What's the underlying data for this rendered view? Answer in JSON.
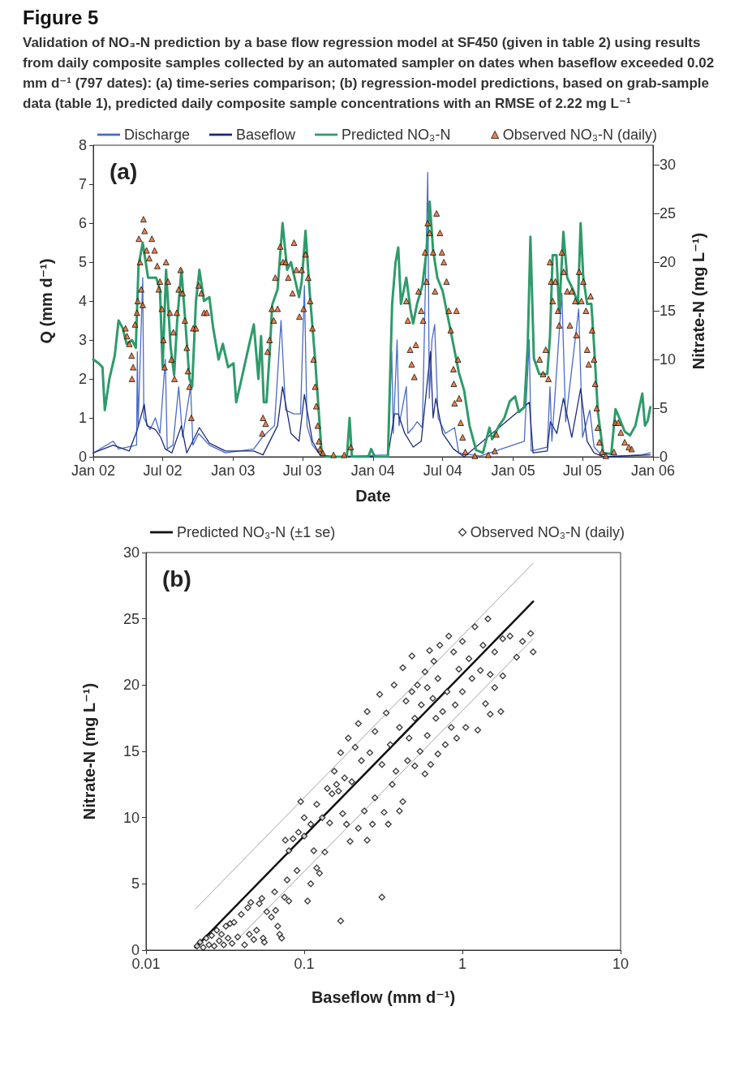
{
  "chart_data": [
    {
      "type": "line",
      "title": "Figure 5",
      "subtitle": "Validation of NO₃-N prediction by a base flow regression model at SF450 (given in table 2) using results from daily composite samples collected by an automated sampler on dates when baseflow exceeded 0.02 mm d⁻¹ (797 dates): (a) time-series comparison; (b) regression-model predictions, based on grab-sample data (table 1), predicted daily composite sample concentrations with an RMSE of 2.22 mg L⁻¹",
      "xlabel": "Date",
      "ylabel": "Q (mm d⁻¹)",
      "y2label": "Nitrate-N (mg L⁻¹)",
      "annotations": [
        "(a)"
      ],
      "legend": "top",
      "xlim": [
        "2002-01-01",
        "2006-01-01"
      ],
      "xticks": [
        {
          "value": "2002-01-01",
          "label": "Jan 02"
        },
        {
          "value": "2002-07-01",
          "label": "Jul 02"
        },
        {
          "value": "2003-01-01",
          "label": "Jan 03"
        },
        {
          "value": "2003-07-01",
          "label": "Jul 03"
        },
        {
          "value": "2004-01-01",
          "label": "Jan 04"
        },
        {
          "value": "2004-07-01",
          "label": "Jul 04"
        },
        {
          "value": "2005-01-01",
          "label": "Jan 05"
        },
        {
          "value": "2005-07-01",
          "label": "Jul 05"
        },
        {
          "value": "2006-01-01",
          "label": "Jan 06"
        }
      ],
      "ylim": [
        0,
        8
      ],
      "yticks": [
        0,
        1,
        2,
        3,
        4,
        5,
        6,
        7,
        8
      ],
      "y2lim": [
        0,
        32
      ],
      "y2ticks": [
        0,
        5,
        10,
        15,
        20,
        25,
        30
      ],
      "series": [
        {
          "name": "Discharge",
          "color": "#4a6cc8",
          "marker": "none",
          "x": [
            "2002-01-01",
            "2002-02-22",
            "2002-03-08",
            "2002-04-24",
            "2002-04-26",
            "2002-04-28",
            "2002-05-10",
            "2002-05-13",
            "2002-05-29",
            "2002-06-12",
            "2002-06-24",
            "2002-07-08",
            "2002-07-13",
            "2002-07-28",
            "2002-08-12",
            "2002-08-22",
            "2002-09-12",
            "2002-09-18",
            "2002-10-03",
            "2002-10-31",
            "2002-12-12",
            "2003-02-24",
            "2003-03-18",
            "2003-04-19",
            "2003-04-27",
            "2003-05-06",
            "2003-05-18",
            "2003-06-08",
            "2003-06-26",
            "2003-07-06",
            "2003-07-13",
            "2003-07-27",
            "2003-08-16",
            "2003-09-20",
            "2004-02-09",
            "2004-02-19",
            "2004-02-23",
            "2004-03-04",
            "2004-03-09",
            "2004-03-28",
            "2004-04-01",
            "2004-04-15",
            "2004-04-25",
            "2004-05-09",
            "2004-05-23",
            "2004-05-27",
            "2004-06-03",
            "2004-06-10",
            "2004-06-19",
            "2004-07-08",
            "2004-08-01",
            "2004-08-12",
            "2004-10-07",
            "2005-01-30",
            "2005-02-12",
            "2005-02-17",
            "2005-03-31",
            "2005-04-07",
            "2005-04-12",
            "2005-05-08",
            "2005-05-18",
            "2005-06-21",
            "2005-07-01",
            "2005-07-20",
            "2005-07-31",
            "2005-08-24",
            "2005-12-01",
            "2005-12-25"
          ],
          "values": [
            0.1,
            0.4,
            0.2,
            0.3,
            2.7,
            0.8,
            4.6,
            1.0,
            0.7,
            1.0,
            0.6,
            2.5,
            0.2,
            0.3,
            1.8,
            0.5,
            1.8,
            0.3,
            0.6,
            0.3,
            0.1,
            0.2,
            0.5,
            0.8,
            2.1,
            3.5,
            1.2,
            1.1,
            1.1,
            4.4,
            0.8,
            0.3,
            0.05,
            0,
            0.05,
            2.7,
            0.6,
            3.0,
            0.8,
            1.8,
            0.6,
            0.75,
            0.9,
            0.75,
            7.3,
            1.5,
            3.0,
            3.4,
            1.0,
            0.6,
            0.75,
            0.1,
            0.02,
            0.4,
            3.0,
            0.15,
            0.25,
            1.8,
            0.4,
            4.2,
            0.9,
            3.8,
            0.5,
            1.2,
            0.25,
            0,
            0.05,
            0.1
          ]
        },
        {
          "name": "Baseflow",
          "color": "#1c2a7a",
          "marker": "none",
          "x": [
            "2002-01-01",
            "2002-02-22",
            "2002-04-05",
            "2002-04-26",
            "2002-05-14",
            "2002-05-21",
            "2002-06-12",
            "2002-06-26",
            "2002-07-08",
            "2002-07-25",
            "2002-08-19",
            "2002-09-02",
            "2002-10-05",
            "2002-10-31",
            "2002-12-12",
            "2003-02-24",
            "2003-03-20",
            "2003-04-27",
            "2003-05-10",
            "2003-06-01",
            "2003-06-22",
            "2003-07-06",
            "2003-07-27",
            "2003-08-16",
            "2003-09-20",
            "2004-02-09",
            "2004-02-26",
            "2004-03-07",
            "2004-03-24",
            "2004-04-15",
            "2004-05-06",
            "2004-05-30",
            "2004-06-06",
            "2004-06-13",
            "2004-07-01",
            "2004-07-29",
            "2004-08-26",
            "2005-02-12",
            "2005-02-22",
            "2005-03-31",
            "2005-04-08",
            "2005-04-25",
            "2005-05-12",
            "2005-06-03",
            "2005-06-26",
            "2005-07-13",
            "2005-07-31",
            "2005-08-24",
            "2005-12-25"
          ],
          "values": [
            0.1,
            0.3,
            0.15,
            0.7,
            1.35,
            0.8,
            0.7,
            0.5,
            0.2,
            0.1,
            0.8,
            0.1,
            0.75,
            0.35,
            0.15,
            0.15,
            0.05,
            0.8,
            1.8,
            0.6,
            0.4,
            1.6,
            0.4,
            0.05,
            0,
            0,
            1.1,
            1.1,
            0.6,
            0.25,
            0.4,
            2.7,
            1.0,
            1.5,
            0.6,
            0.2,
            0,
            1.4,
            0.1,
            0.15,
            0.9,
            0.6,
            1.5,
            0.5,
            1.75,
            0.4,
            0.1,
            0,
            0.05
          ]
        },
        {
          "name": "Predicted NO₃-N",
          "axis": "y2",
          "color": "#2e9b6b",
          "marker": "none",
          "x": [
            "2002-01-01",
            "2002-01-15",
            "2002-01-25",
            "2002-01-31",
            "2002-02-12",
            "2002-02-26",
            "2002-03-08",
            "2002-03-19",
            "2002-03-29",
            "2002-04-12",
            "2002-04-22",
            "2002-04-29",
            "2002-05-10",
            "2002-05-24",
            "2002-06-14",
            "2002-06-24",
            "2002-07-01",
            "2002-07-10",
            "2002-07-22",
            "2002-07-31",
            "2002-08-08",
            "2002-08-19",
            "2002-08-29",
            "2002-09-09",
            "2002-09-16",
            "2002-09-26",
            "2002-10-05",
            "2002-10-17",
            "2002-10-31",
            "2002-11-10",
            "2002-11-24",
            "2002-12-05",
            "2002-12-19",
            "2003-01-02",
            "2003-01-09",
            "2003-01-23",
            "2003-02-10",
            "2003-02-24",
            "2003-03-08",
            "2003-03-15",
            "2003-03-22",
            "2003-03-29",
            "2003-04-06",
            "2003-04-13",
            "2003-04-27",
            "2003-05-10",
            "2003-05-22",
            "2003-06-01",
            "2003-06-22",
            "2003-06-29",
            "2003-07-09",
            "2003-07-20",
            "2003-08-03",
            "2003-08-20",
            "2003-08-31",
            "2003-10-25",
            "2003-11-01",
            "2003-11-07",
            "2003-12-20",
            "2003-12-27",
            "2004-01-06",
            "2004-02-09",
            "2004-02-20",
            "2004-02-29",
            "2004-03-07",
            "2004-03-14",
            "2004-03-28",
            "2004-04-08",
            "2004-04-15",
            "2004-04-25",
            "2004-05-09",
            "2004-05-20",
            "2004-05-28",
            "2004-06-06",
            "2004-06-17",
            "2004-07-01",
            "2004-07-22",
            "2004-08-12",
            "2004-08-26",
            "2004-09-09",
            "2004-09-26",
            "2004-10-14",
            "2004-10-31",
            "2004-11-07",
            "2004-11-25",
            "2004-12-09",
            "2004-12-23",
            "2005-01-06",
            "2005-01-16",
            "2005-01-30",
            "2005-02-08",
            "2005-02-15",
            "2005-02-24",
            "2005-03-10",
            "2005-03-31",
            "2005-04-07",
            "2005-04-14",
            "2005-04-24",
            "2005-05-01",
            "2005-05-12",
            "2005-05-22",
            "2005-06-08",
            "2005-06-19",
            "2005-06-26",
            "2005-07-03",
            "2005-07-13",
            "2005-07-24",
            "2005-07-31",
            "2005-08-10",
            "2005-08-24",
            "2005-09-14",
            "2005-09-25",
            "2005-10-05",
            "2005-10-19",
            "2005-11-02",
            "2005-11-16",
            "2005-12-04",
            "2005-12-11",
            "2005-12-18",
            "2005-12-25"
          ],
          "values": [
            10,
            9.6,
            9.2,
            4.8,
            8,
            10.4,
            14,
            13.2,
            11.6,
            12,
            11.2,
            19.6,
            22,
            18.4,
            18.4,
            17.2,
            9.2,
            19.2,
            11.2,
            8.4,
            14,
            19.2,
            14,
            8,
            7.2,
            16,
            19.2,
            16,
            16.4,
            13.2,
            10,
            11.6,
            9.2,
            9.6,
            5.6,
            8,
            11.2,
            13.6,
            8,
            12.4,
            5.6,
            5.6,
            10.4,
            15.6,
            17.2,
            24,
            19.2,
            20,
            16.4,
            18,
            23.2,
            16.8,
            10,
            0.4,
            0,
            0,
            4,
            0,
            0,
            0.8,
            0,
            0,
            15.7,
            20,
            21.5,
            15.7,
            18.4,
            15.1,
            13.7,
            15.7,
            17.6,
            21.2,
            26.2,
            21.2,
            18.4,
            17,
            12.9,
            8.7,
            6.8,
            3.2,
            0.7,
            0.4,
            3,
            1.8,
            3.2,
            4,
            5.7,
            6.2,
            4.6,
            5.1,
            11.5,
            22.6,
            10.1,
            8.5,
            8.5,
            12.3,
            20.7,
            20.7,
            14.8,
            23.1,
            18.4,
            17,
            15.7,
            24,
            18.4,
            15.7,
            15.7,
            11.5,
            4.6,
            0.4,
            0.3,
            4.9,
            4,
            2.6,
            2.2,
            3.2,
            6.5,
            3.2,
            3.7,
            5.1
          ]
        },
        {
          "name": "Observed NO₃-N (daily)",
          "type": "scatter",
          "axis": "y2",
          "color": "#e8641e",
          "marker": "triangle",
          "x": [
            "2002-03-26",
            "2002-03-30",
            "2002-04-05",
            "2002-04-11",
            "2002-04-12",
            "2002-04-15",
            "2002-04-20",
            "2002-04-25",
            "2002-04-27",
            "2002-04-30",
            "2002-05-03",
            "2002-05-06",
            "2002-05-10",
            "2002-05-12",
            "2002-05-15",
            "2002-05-20",
            "2002-05-27",
            "2002-06-03",
            "2002-06-10",
            "2002-06-17",
            "2002-06-21",
            "2002-06-24",
            "2002-06-29",
            "2002-07-03",
            "2002-07-06",
            "2002-07-10",
            "2002-07-15",
            "2002-07-20",
            "2002-07-24",
            "2002-07-29",
            "2002-08-01",
            "2002-08-07",
            "2002-08-12",
            "2002-08-17",
            "2002-08-22",
            "2002-08-28",
            "2002-09-02",
            "2002-09-05",
            "2002-09-09",
            "2002-09-14",
            "2002-09-19",
            "2002-09-26",
            "2002-10-03",
            "2002-10-10",
            "2002-10-17",
            "2002-10-24",
            "2003-03-18",
            "2003-03-20",
            "2003-03-27",
            "2003-04-01",
            "2003-04-06",
            "2003-04-12",
            "2003-04-17",
            "2003-04-21",
            "2003-04-27",
            "2003-05-04",
            "2003-05-11",
            "2003-05-18",
            "2003-05-25",
            "2003-06-05",
            "2003-06-09",
            "2003-06-15",
            "2003-06-23",
            "2003-06-29",
            "2003-07-04",
            "2003-07-09",
            "2003-07-16",
            "2003-07-21",
            "2003-07-27",
            "2003-07-30",
            "2003-08-03",
            "2003-08-06",
            "2003-08-10",
            "2003-08-13",
            "2003-08-16",
            "2003-08-23",
            "2003-09-20",
            "2003-10-18",
            "2003-11-04",
            "2004-03-28",
            "2004-04-01",
            "2004-04-07",
            "2004-04-11",
            "2004-04-18",
            "2004-04-22",
            "2004-04-29",
            "2004-05-06",
            "2004-05-11",
            "2004-05-16",
            "2004-05-20",
            "2004-05-23",
            "2004-05-28",
            "2004-06-06",
            "2004-06-11",
            "2004-06-15",
            "2004-06-24",
            "2004-06-29",
            "2004-07-04",
            "2004-07-11",
            "2004-07-17",
            "2004-07-22",
            "2004-07-29",
            "2004-07-30",
            "2004-08-01",
            "2004-08-06",
            "2004-08-10",
            "2004-08-13",
            "2004-08-17",
            "2004-08-22",
            "2004-08-29",
            "2004-09-23",
            "2004-10-28",
            "2004-11-14",
            "2004-11-18",
            "2005-03-11",
            "2005-03-20",
            "2005-03-27",
            "2005-04-03",
            "2005-04-07",
            "2005-04-10",
            "2005-04-14",
            "2005-04-21",
            "2005-04-28",
            "2005-05-01",
            "2005-05-08",
            "2005-05-13",
            "2005-05-22",
            "2005-05-29",
            "2005-06-03",
            "2005-06-12",
            "2005-06-15",
            "2005-06-22",
            "2005-06-28",
            "2005-07-03",
            "2005-07-10",
            "2005-07-13",
            "2005-07-17",
            "2005-07-22",
            "2005-07-26",
            "2005-07-31",
            "2005-08-03",
            "2005-08-07",
            "2005-08-10",
            "2005-08-14",
            "2005-08-21",
            "2005-08-31",
            "2005-09-21",
            "2005-09-25",
            "2005-10-02",
            "2005-10-09",
            "2005-10-19",
            "2005-10-30",
            "2005-11-06"
          ],
          "values": [
            13.2,
            12.4,
            11.6,
            10.4,
            8,
            9.2,
            13.6,
            14.8,
            16,
            22.4,
            20,
            17.2,
            15.6,
            24.4,
            23.2,
            21.2,
            20.4,
            22.4,
            21.2,
            19.6,
            17.2,
            18,
            15.2,
            12,
            9.2,
            20,
            18,
            14.8,
            10,
            12.8,
            8,
            14.8,
            17.2,
            19.2,
            16.8,
            14,
            11.2,
            8.8,
            7.2,
            4,
            13.2,
            13.2,
            17.6,
            16.8,
            14.8,
            14.8,
            2.4,
            4,
            3.4,
            10.8,
            12,
            15.2,
            14,
            18.4,
            15.2,
            21.6,
            20,
            20,
            18.4,
            16.8,
            22,
            19.2,
            14.4,
            19.2,
            15.2,
            20.8,
            18.4,
            16,
            13.2,
            10,
            7.2,
            5.2,
            3.2,
            1.6,
            0.8,
            0.4,
            0.2,
            0.2,
            1.0,
            16,
            14,
            11,
            9.5,
            8.2,
            11.5,
            17,
            15,
            14,
            21,
            18,
            24,
            23,
            21,
            17,
            25,
            23,
            21,
            20,
            18,
            15,
            13,
            9,
            7.5,
            5.5,
            15,
            10,
            6,
            3.5,
            2,
            0.5,
            0.1,
            0.2,
            0.6,
            2.3,
            10,
            8.5,
            11,
            8,
            20,
            18,
            16,
            18,
            15,
            13.5,
            21,
            19,
            17,
            13.5,
            17,
            16,
            12.5,
            19,
            16,
            18,
            15,
            11,
            9.5,
            16.5,
            13,
            10,
            7.5,
            5,
            3,
            1.5,
            0.5,
            0.1,
            0.5,
            3.5,
            3.5,
            2.5,
            1.5,
            1.0,
            0.8
          ]
        }
      ]
    },
    {
      "type": "scatter",
      "xlabel": "Baseflow (mm d⁻¹)",
      "ylabel": "Nitrate-N (mg L⁻¹)",
      "annotations": [
        "(b)"
      ],
      "legend": "top",
      "log": "x",
      "xlim": [
        0.01,
        10
      ],
      "xticks": [
        0.01,
        0.1,
        1,
        10
      ],
      "ylim": [
        0,
        30
      ],
      "yticks": [
        0,
        5,
        10,
        15,
        20,
        25,
        30
      ],
      "series": [
        {
          "name": "Predicted NO₃-N (±1 se)",
          "type": "line",
          "color": "#111111",
          "marker": "none",
          "x": [
            0.0205,
            2.8
          ],
          "values": [
            0.2,
            26.3
          ]
        },
        {
          "type": "line",
          "color": "#999999",
          "marker": "none",
          "x": [
            0.0205,
            2.8
          ],
          "values": [
            3.1,
            29.2
          ]
        },
        {
          "type": "line",
          "color": "#999999",
          "marker": "none",
          "x": [
            0.037,
            2.8
          ],
          "values": [
            0.7,
            23.5
          ]
        },
        {
          "name": "Observed NO₃-N (daily)",
          "color": "#111111",
          "marker": "diamond",
          "x": [
            0.021,
            0.022,
            0.023,
            0.024,
            0.025,
            0.026,
            0.027,
            0.028,
            0.029,
            0.03,
            0.031,
            0.032,
            0.033,
            0.034,
            0.035,
            0.036,
            0.038,
            0.04,
            0.042,
            0.044,
            0.045,
            0.046,
            0.048,
            0.05,
            0.052,
            0.054,
            0.055,
            0.056,
            0.058,
            0.062,
            0.065,
            0.066,
            0.068,
            0.07,
            0.072,
            0.075,
            0.078,
            0.08,
            0.076,
            0.08,
            0.085,
            0.09,
            0.092,
            0.095,
            0.1,
            0.1,
            0.105,
            0.11,
            0.11,
            0.115,
            0.12,
            0.12,
            0.125,
            0.13,
            0.135,
            0.14,
            0.145,
            0.15,
            0.155,
            0.16,
            0.17,
            0.165,
            0.17,
            0.175,
            0.18,
            0.185,
            0.19,
            0.195,
            0.2,
            0.21,
            0.22,
            0.22,
            0.23,
            0.24,
            0.25,
            0.25,
            0.26,
            0.27,
            0.28,
            0.28,
            0.3,
            0.31,
            0.31,
            0.32,
            0.33,
            0.34,
            0.35,
            0.36,
            0.37,
            0.38,
            0.4,
            0.4,
            0.42,
            0.42,
            0.44,
            0.45,
            0.46,
            0.48,
            0.48,
            0.5,
            0.5,
            0.52,
            0.54,
            0.55,
            0.58,
            0.58,
            0.6,
            0.6,
            0.62,
            0.63,
            0.65,
            0.66,
            0.68,
            0.7,
            0.7,
            0.72,
            0.75,
            0.78,
            0.8,
            0.82,
            0.85,
            0.88,
            0.9,
            0.92,
            0.95,
            1.0,
            1.0,
            1.05,
            1.1,
            1.15,
            1.2,
            1.25,
            1.3,
            1.35,
            1.4,
            1.45,
            1.5,
            1.5,
            1.6,
            1.6,
            1.75,
            1.8,
            1.8,
            2.0,
            2.2,
            2.4,
            2.7,
            2.8
          ],
          "values": [
            0.3,
            0.6,
            0.2,
            0.9,
            0.4,
            1.1,
            0.3,
            1.5,
            0.7,
            1.2,
            0.4,
            1.8,
            0.9,
            2.0,
            0.5,
            2.1,
            1.0,
            2.7,
            0.4,
            3.2,
            1.2,
            3.6,
            0.8,
            1.5,
            3.5,
            3.9,
            0.9,
            0.6,
            2.9,
            2.5,
            4.4,
            3.0,
            1.8,
            1.2,
            0.9,
            4.0,
            5.3,
            3.7,
            8.3,
            7.5,
            8.4,
            6.0,
            8.9,
            11.2,
            10.0,
            8.6,
            3.7,
            9.5,
            5.0,
            7.5,
            11.0,
            6.2,
            5.8,
            10.0,
            7.4,
            12.2,
            9.6,
            11.8,
            13.5,
            12.5,
            2.2,
            12.0,
            14.9,
            10.3,
            13.0,
            9.5,
            16.0,
            8.2,
            12.7,
            15.3,
            17.1,
            9.2,
            14.3,
            10.5,
            18.0,
            8.3,
            14.9,
            9.5,
            16.5,
            11.5,
            19.3,
            4.0,
            14.0,
            10.4,
            17.9,
            9.5,
            15.5,
            12.5,
            20.0,
            13.5,
            16.8,
            10.5,
            21.3,
            11.2,
            18.8,
            14.3,
            16.0,
            22.2,
            19.5,
            17.5,
            13.9,
            20.0,
            15.0,
            18.5,
            21.0,
            13.3,
            19.8,
            16.2,
            22.6,
            14.0,
            19.0,
            21.8,
            17.5,
            20.5,
            14.8,
            23.0,
            18.0,
            15.5,
            19.5,
            23.7,
            16.8,
            22.5,
            18.5,
            16.0,
            21.2,
            23.3,
            19.5,
            16.8,
            22.0,
            20.5,
            24.4,
            16.6,
            21.1,
            23.0,
            18.6,
            25.0,
            20.8,
            17.8,
            22.5,
            19.8,
            18.0,
            20.7,
            23.5,
            23.7,
            22.1,
            23.3,
            23.9,
            22.5
          ]
        }
      ]
    }
  ]
}
